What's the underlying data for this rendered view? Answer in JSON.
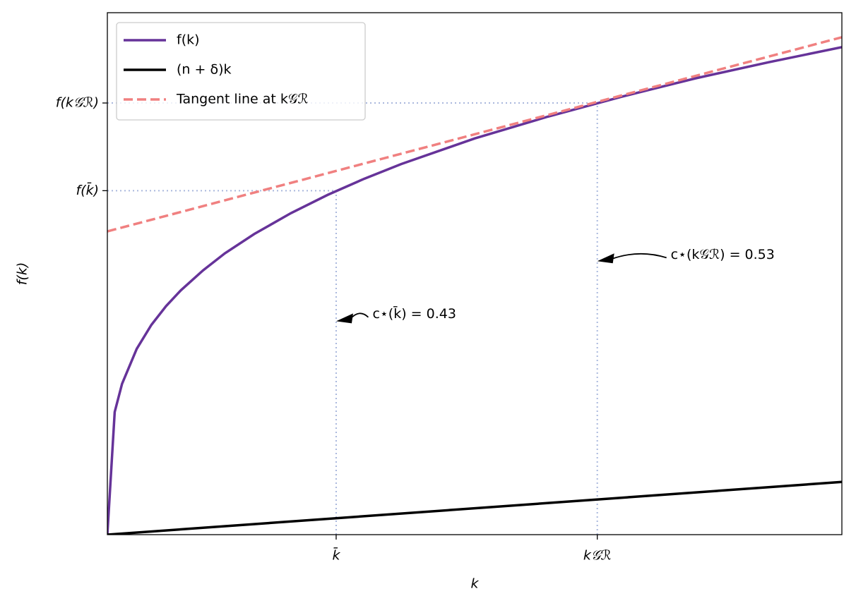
{
  "chart_data": {
    "type": "line",
    "xlabel": "k",
    "ylabel": "f(k)",
    "xlim": [
      0,
      1
    ],
    "ylim": [
      0,
      1
    ],
    "xticks": [
      {
        "value": 0.3115,
        "label": "k̄"
      },
      {
        "value": 0.667,
        "label": "k𝒢ℛ"
      }
    ],
    "yticks": [
      {
        "value": 0.659,
        "label": "f(k̄)"
      },
      {
        "value": 0.827,
        "label": "f(k𝒢ℛ)"
      }
    ],
    "guide_color": "#a9b8dd",
    "legend": "upper left",
    "series": [
      {
        "name": "f(k)",
        "color": "#663399",
        "style": "solid",
        "x": [
          0,
          0.01,
          0.02,
          0.04,
          0.06,
          0.08,
          0.1,
          0.13,
          0.16,
          0.2,
          0.25,
          0.3,
          0.35,
          0.4,
          0.5,
          0.6,
          0.7,
          0.8,
          0.9,
          1.0
        ],
        "values": [
          0,
          0.235,
          0.289,
          0.356,
          0.402,
          0.438,
          0.468,
          0.506,
          0.539,
          0.576,
          0.616,
          0.651,
          0.682,
          0.71,
          0.759,
          0.801,
          0.839,
          0.874,
          0.905,
          0.934
        ]
      },
      {
        "name": "(n + δ)k",
        "color": "#000000",
        "style": "solid",
        "x": [
          0,
          1
        ],
        "values": [
          0,
          0.101
        ]
      },
      {
        "name": "Tangent line at k𝒢ℛ",
        "color": "#f08080",
        "style": "dashed",
        "x": [
          0,
          1
        ],
        "values": [
          0.581,
          0.953
        ]
      }
    ],
    "annotations": [
      {
        "text": "c⋆(k̄) = 0.43",
        "x": 0.3115,
        "y": 0.409,
        "text_x": 0.361,
        "text_y": 0.422
      },
      {
        "text": "c⋆(k𝒢ℛ) = 0.53",
        "x": 0.667,
        "y": 0.524,
        "text_x": 0.767,
        "text_y": 0.536
      }
    ]
  }
}
